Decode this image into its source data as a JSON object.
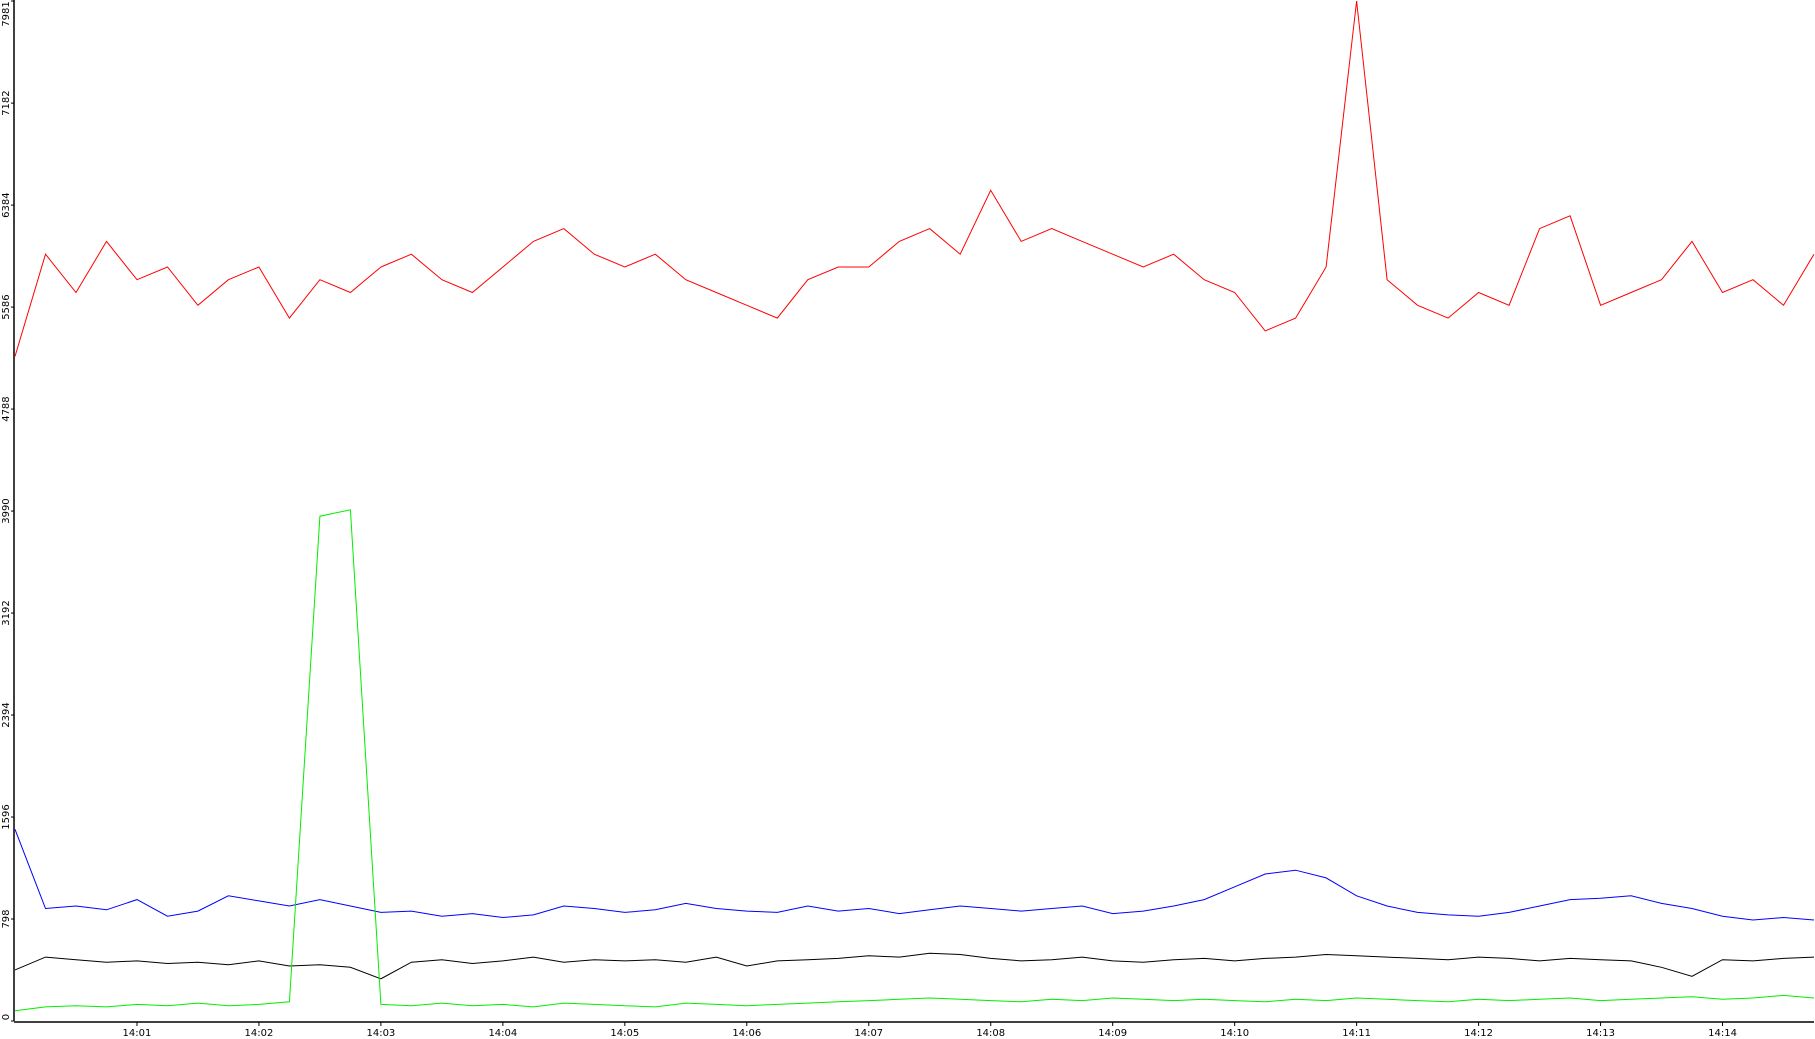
{
  "chart_data": {
    "type": "line",
    "categories": [
      null,
      null,
      null,
      null,
      "14:01",
      null,
      null,
      null,
      "14:02",
      null,
      null,
      null,
      "14:03",
      null,
      null,
      null,
      "14:04",
      null,
      null,
      null,
      "14:05",
      null,
      null,
      null,
      "14:06",
      null,
      null,
      null,
      "14:07",
      null,
      null,
      null,
      "14:08",
      null,
      null,
      null,
      "14:09",
      null,
      null,
      null,
      "14:10",
      null,
      null,
      null,
      "14:11",
      null,
      null,
      null,
      "14:12",
      null,
      null,
      null,
      "14:13",
      null,
      null,
      null,
      "14:14",
      null,
      null,
      null
    ],
    "series": [
      {
        "color": "#ff0000",
        "values": [
          5200,
          6000,
          5700,
          6100,
          5800,
          5900,
          5600,
          5800,
          5900,
          5500,
          5800,
          5700,
          5900,
          6000,
          5800,
          5700,
          5900,
          6100,
          6200,
          6000,
          5900,
          6000,
          5800,
          5700,
          5600,
          5500,
          5800,
          5900,
          5900,
          6100,
          6200,
          6000,
          6500,
          6100,
          6200,
          6100,
          6000,
          5900,
          6000,
          5800,
          5700,
          5400,
          5500,
          5900,
          7981,
          5800,
          5600,
          5500,
          5700,
          5600,
          6200,
          6300,
          5600,
          5700,
          5800,
          6100,
          5700,
          5800,
          5600,
          6000
        ]
      },
      {
        "color": "#0000ff",
        "values": [
          1500,
          880,
          900,
          870,
          950,
          820,
          860,
          980,
          940,
          900,
          950,
          900,
          850,
          860,
          820,
          840,
          810,
          830,
          900,
          880,
          850,
          870,
          920,
          880,
          860,
          850,
          900,
          860,
          880,
          840,
          870,
          900,
          880,
          860,
          880,
          900,
          840,
          860,
          900,
          950,
          1050,
          1150,
          1180,
          1120,
          980,
          900,
          850,
          830,
          820,
          850,
          900,
          950,
          960,
          980,
          920,
          880,
          820,
          790,
          810,
          790
        ]
      },
      {
        "color": "#000000",
        "values": [
          400,
          500,
          480,
          460,
          470,
          450,
          460,
          440,
          470,
          430,
          440,
          420,
          330,
          460,
          480,
          450,
          470,
          500,
          460,
          480,
          470,
          480,
          460,
          500,
          430,
          470,
          480,
          490,
          510,
          500,
          530,
          520,
          490,
          470,
          480,
          500,
          470,
          460,
          480,
          490,
          470,
          490,
          500,
          520,
          510,
          500,
          490,
          480,
          500,
          490,
          470,
          490,
          480,
          470,
          420,
          350,
          480,
          470,
          490,
          500
        ]
      },
      {
        "color": "#00ee00",
        "values": [
          80,
          110,
          120,
          110,
          130,
          120,
          140,
          120,
          130,
          150,
          3950,
          4000,
          130,
          120,
          140,
          120,
          130,
          110,
          140,
          130,
          120,
          110,
          140,
          130,
          120,
          130,
          140,
          150,
          160,
          170,
          180,
          170,
          160,
          150,
          170,
          160,
          180,
          170,
          160,
          170,
          160,
          150,
          170,
          160,
          180,
          170,
          160,
          150,
          170,
          160,
          170,
          180,
          160,
          170,
          180,
          190,
          170,
          180,
          200,
          180
        ]
      }
    ],
    "ylim": [
      0,
      7981
    ],
    "yticks": [
      0,
      798,
      1596,
      2394,
      3192,
      3990,
      4788,
      5586,
      6384,
      7182,
      7981
    ]
  }
}
